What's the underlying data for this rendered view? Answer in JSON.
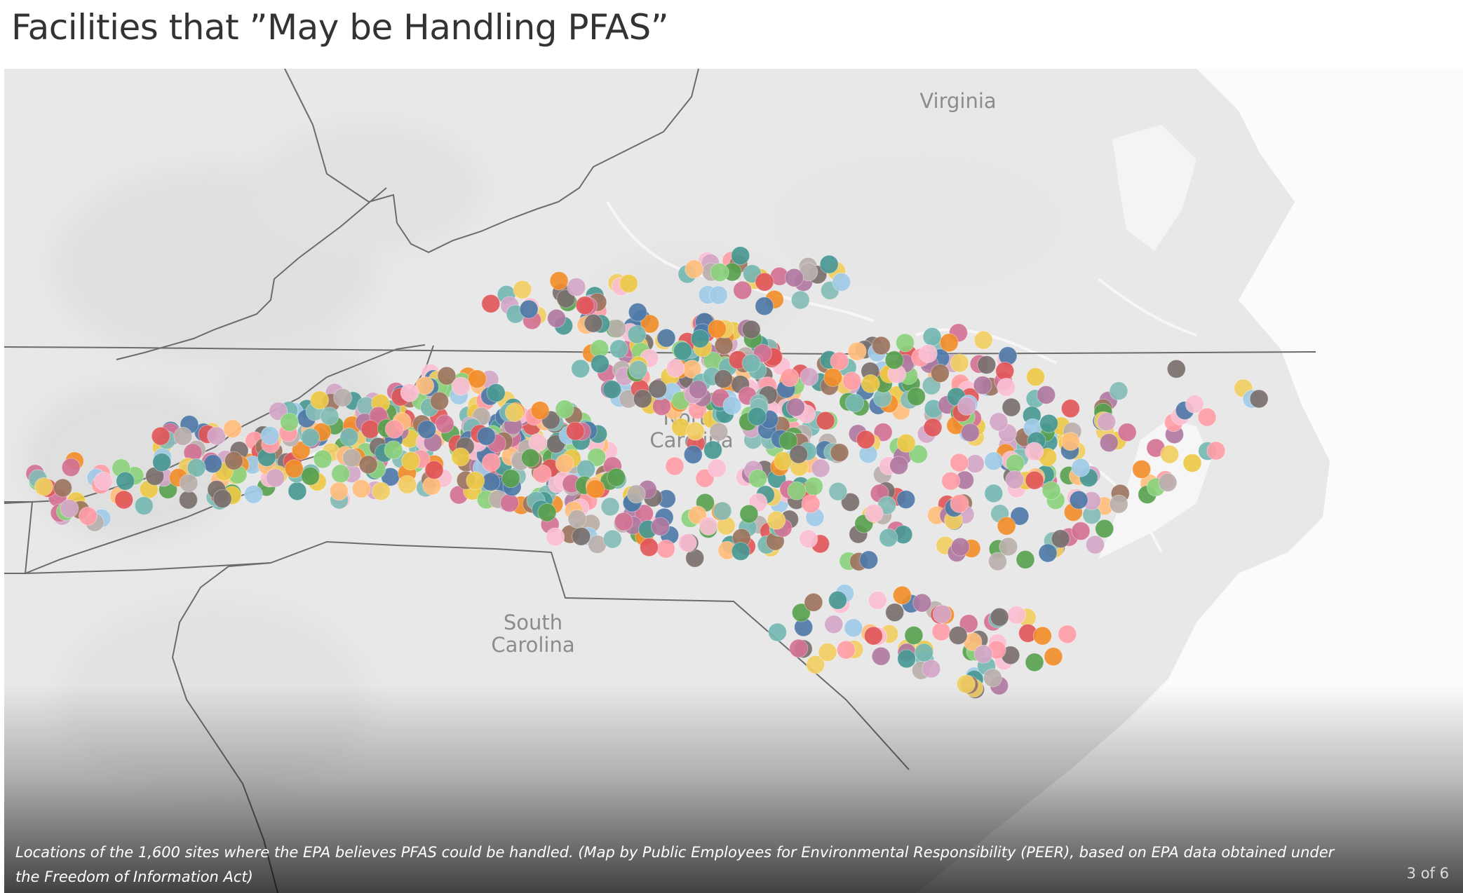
{
  "title": "Facilities that ”May be Handling PFAS”",
  "map": {
    "labels": {
      "virginia": "Virginia",
      "nc_line1": "North",
      "nc_line2": "Carolina",
      "sc_line1": "South",
      "sc_line2": "Carolina"
    },
    "marker_count_shown": 1600,
    "marker_colors": [
      "#4e79a7",
      "#f28e2b",
      "#59a14f",
      "#e15759",
      "#76b7b2",
      "#edc948",
      "#b07aa1",
      "#ff9da7",
      "#9c755f",
      "#bab0ac",
      "#a0cbe8",
      "#ffbe7d",
      "#8cd17d",
      "#f1ce63",
      "#499894",
      "#d4a6c8",
      "#fabfd2",
      "#86bcb6",
      "#d37295",
      "#79706e"
    ],
    "land_color": "#e8e8e8",
    "border_color": "#6b6b6b"
  },
  "caption": {
    "text": "Locations of the 1,600 sites where the EPA believes PFAS could be handled. (Map by Public Employees for Environmental Responsibility (PEER), based on EPA data obtained under the Freedom of Information Act)",
    "counter": "3 of 6"
  }
}
